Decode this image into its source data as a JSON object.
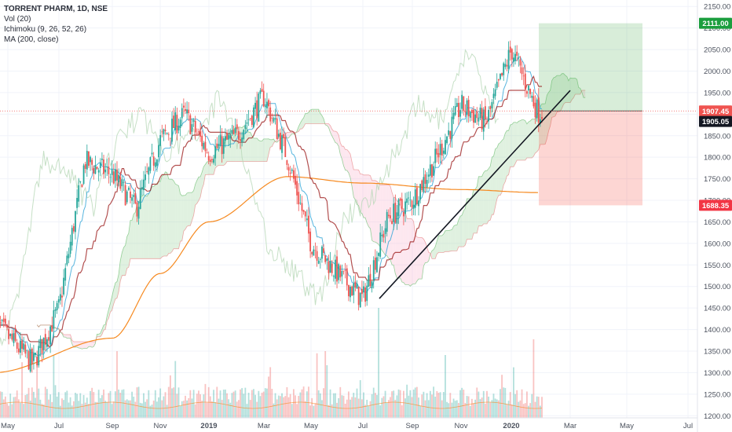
{
  "chart_data": {
    "type": "candlestick",
    "legend": {
      "symbol": "TORRENT PHARM, 1D, NSE",
      "indicators": [
        "Vol (20)",
        "Ichimoku (9, 26, 52, 26)",
        "MA (200, close)"
      ]
    },
    "y_axis": {
      "ticks": [
        1200,
        1250,
        1300,
        1350,
        1400,
        1450,
        1500,
        1550,
        1600,
        1650,
        1700,
        1750,
        1800,
        1850,
        1900,
        1950,
        2000,
        2050,
        2100,
        2150
      ],
      "ylim": [
        1195,
        2165
      ]
    },
    "x_axis": {
      "ticks": [
        "May",
        "Jul",
        "Sep",
        "Nov",
        "2019",
        "Mar",
        "May",
        "Jul",
        "Sep",
        "Nov",
        "2020",
        "Mar",
        "May",
        "Jul"
      ],
      "bold_ticks": [
        "2019",
        "2020"
      ]
    },
    "price_labels": [
      {
        "text": "2111.00",
        "value": 2111,
        "color": "#1b9e3e"
      },
      {
        "text": "1907.45",
        "value": 1907.45,
        "color": "#ef5350"
      },
      {
        "text": "1905.05",
        "value": 1905.05,
        "color": "#131722"
      },
      {
        "text": "1688.35",
        "value": 1688.35,
        "color": "#f23645"
      }
    ],
    "close_price_anchors": [
      [
        "May",
        1420
      ],
      [
        "Jun",
        1320
      ],
      [
        "Jul",
        1450
      ],
      [
        "Aug",
        1790
      ],
      [
        "Sep",
        1760
      ],
      [
        "Oct",
        1680
      ],
      [
        "Nov",
        1840
      ],
      [
        "Dec",
        1900
      ],
      [
        "2019",
        1810
      ],
      [
        "Feb",
        1850
      ],
      [
        "Mar",
        1940
      ],
      [
        "Apr",
        1800
      ],
      [
        "May",
        1600
      ],
      [
        "Jun",
        1530
      ],
      [
        "Jul",
        1470
      ],
      [
        "Aug",
        1660
      ],
      [
        "Sep",
        1700
      ],
      [
        "Oct",
        1800
      ],
      [
        "Nov",
        1920
      ],
      [
        "Dec",
        1880
      ],
      [
        "2020",
        2050
      ],
      [
        "Feb",
        1905
      ]
    ],
    "ma200_anchors": [
      [
        "May",
        1300
      ],
      [
        "Sep",
        1380
      ],
      [
        "Nov",
        1530
      ],
      [
        "2019",
        1650
      ],
      [
        "Apr",
        1755
      ],
      [
        "Jul",
        1740
      ],
      [
        "Nov",
        1725
      ],
      [
        "Feb",
        1718
      ]
    ],
    "trendline": {
      "from": {
        "date": "Jul 2019",
        "price": 1472
      },
      "to": {
        "date": "Feb 2020",
        "price": 1955
      }
    },
    "position": {
      "entry": 1907.45,
      "target": 2111.0,
      "stop": 1688.35
    },
    "colors": {
      "up": "#26a69a",
      "down": "#ef5350",
      "tenkan": "#3aa8d8",
      "kijun": "#991515",
      "ma": "#f6891f",
      "cloud_up": "#a5d6a7",
      "cloud_down": "#f8bbd0"
    }
  }
}
